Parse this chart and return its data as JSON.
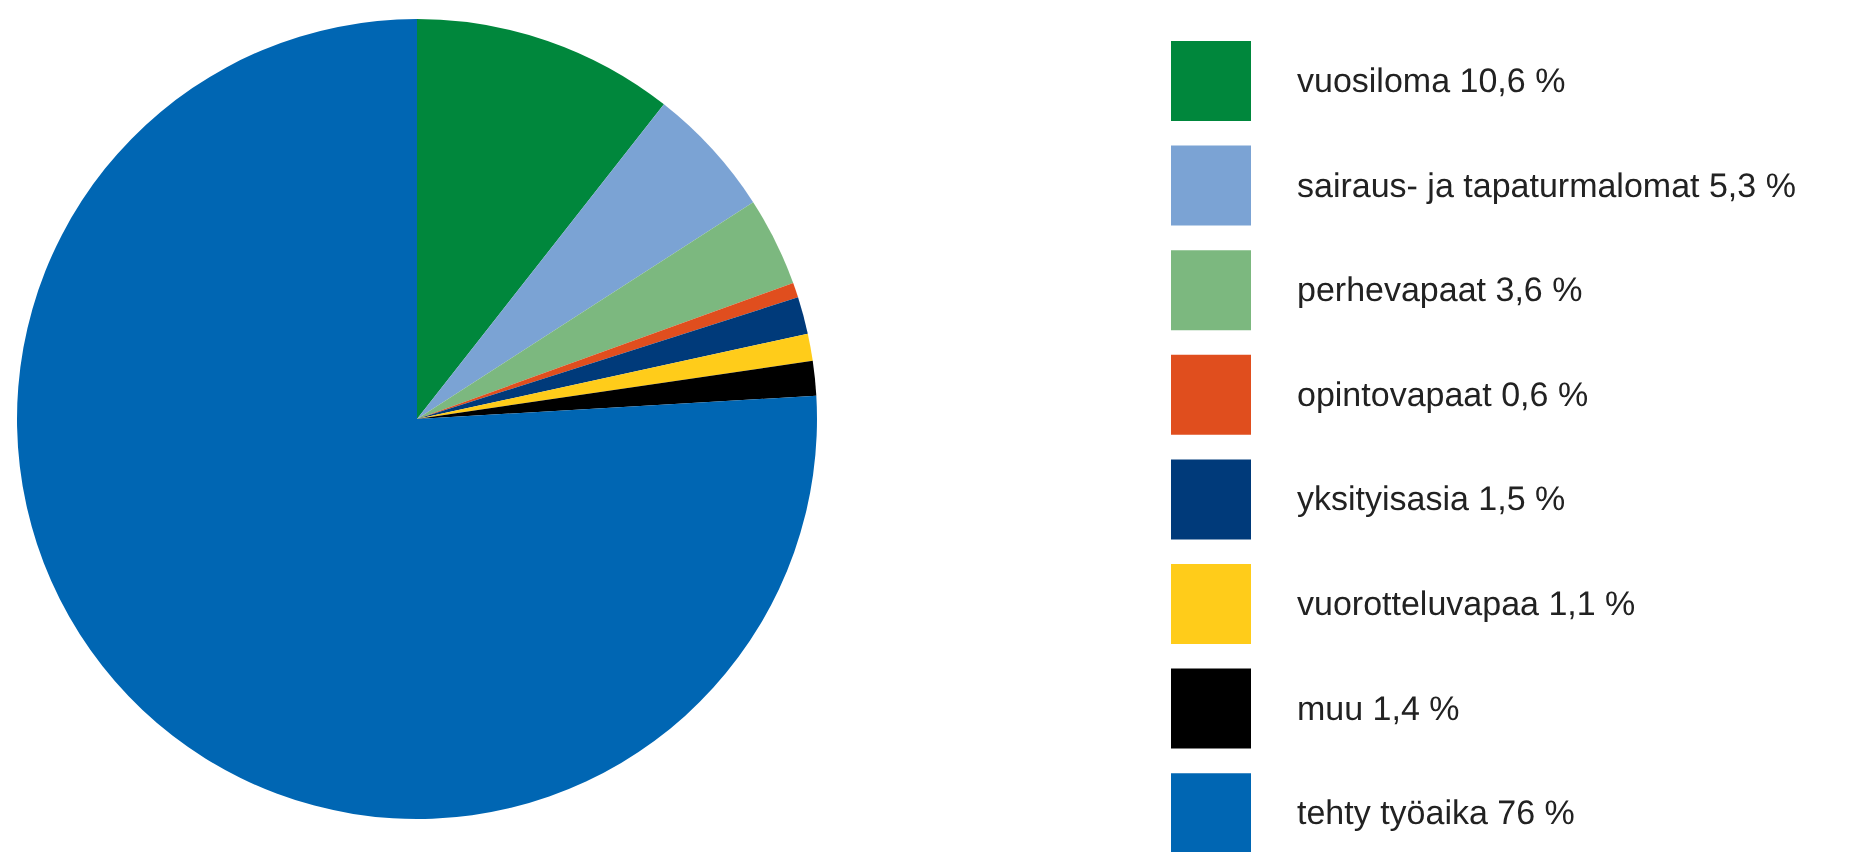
{
  "chart_data": {
    "type": "pie",
    "categories": [
      "vuosiloma 10,6 %",
      "sairaus- ja tapaturmalomat 5,3 %",
      "perhevapaat 3,6 %",
      "opintovapaat 0,6 %",
      "yksityisasia 1,5 %",
      "vuorotteluvapaa 1,1 %",
      "muu 1,4 %",
      "tehty työaika 76 %"
    ],
    "values": [
      10.6,
      5.3,
      3.6,
      0.6,
      1.5,
      1.1,
      1.4,
      76
    ],
    "colors": [
      "#00873c",
      "#7ba3d4",
      "#7cb87f",
      "#e04e1e",
      "#003a7a",
      "#ffcc1a",
      "#000000",
      "#0066b3"
    ],
    "legend": "right"
  }
}
